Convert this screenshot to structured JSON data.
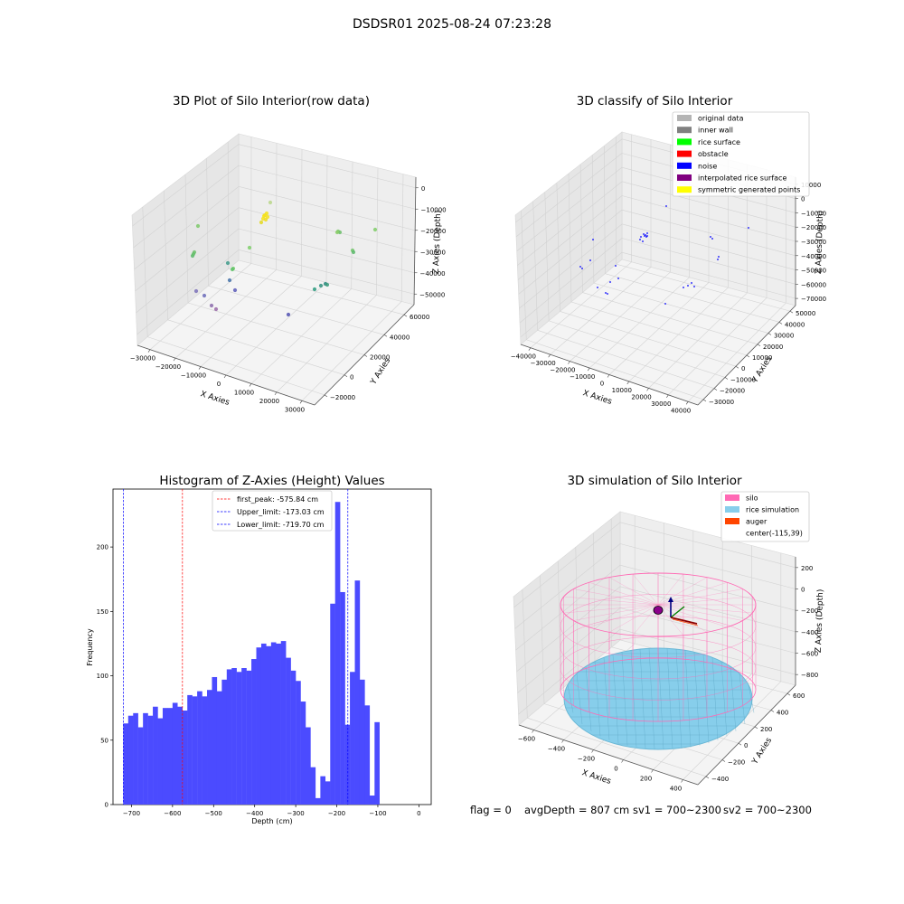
{
  "figure_title": "DSDSR01 2025-08-24 07:23:28",
  "status_line": {
    "flag": "flag = 0",
    "avg_depth": "avgDepth = 807 cm",
    "sv1": "sv1 = 700~2300",
    "sv2": "sv2 = 700~2300"
  },
  "colors": {
    "hist_bar": "#4b4bff",
    "first_peak_line": "#ff0000",
    "limit_line": "#0000ff",
    "silo": "#ff69b4",
    "rice": "#87ceeb",
    "auger": "#ff4500"
  },
  "chart_data": [
    {
      "type": "scatter",
      "title": "3D Plot of Silo Interior(row data)",
      "xlabel": "X Axies",
      "ylabel": "Y Axies",
      "zlabel": "Z Axies (Depth)",
      "x_ticks": [
        "−30000",
        "−20000",
        "−10000",
        "0",
        "10000",
        "20000",
        "30000"
      ],
      "y_ticks": [
        "−20000",
        "0",
        "20000",
        "40000",
        "60000"
      ],
      "z_ticks": [
        "−50000",
        "−40000",
        "−30000",
        "−20000",
        "−10000",
        "0"
      ]
    },
    {
      "type": "scatter",
      "title": "3D classify of Silo Interior",
      "xlabel": "X Axies",
      "ylabel": "Y Axies",
      "zlabel": "Z Axies (Depth)",
      "x_ticks": [
        "−40000",
        "−30000",
        "−20000",
        "−10000",
        "0",
        "10000",
        "20000",
        "30000",
        "40000"
      ],
      "y_ticks": [
        "−30000",
        "−20000",
        "−10000",
        "0",
        "10000",
        "20000",
        "30000",
        "40000",
        "50000"
      ],
      "z_ticks": [
        "−70000",
        "−60000",
        "−50000",
        "−40000",
        "−30000",
        "−20000",
        "−10000",
        "0",
        "10000"
      ],
      "legend": [
        {
          "label": "original data",
          "color": "#b4b4b4"
        },
        {
          "label": "inner wall",
          "color": "#808080"
        },
        {
          "label": "rice surface",
          "color": "#00ff00"
        },
        {
          "label": "obstacle",
          "color": "#ff0000"
        },
        {
          "label": "noise",
          "color": "#0000ff"
        },
        {
          "label": "interpolated rice surface",
          "color": "#800080"
        },
        {
          "label": "symmetric generated points",
          "color": "#ffff00"
        }
      ]
    },
    {
      "type": "bar",
      "title": "Histogram of Z-Axies (Height) Values",
      "xlabel": "Depth (cm)",
      "ylabel": "Frequency",
      "bin_start": -720,
      "bin_width": 12,
      "values": [
        63,
        69,
        71,
        60,
        71,
        69,
        76,
        67,
        75,
        75,
        79,
        76,
        73,
        85,
        84,
        88,
        84,
        89,
        99,
        88,
        97,
        105,
        106,
        103,
        106,
        104,
        113,
        122,
        125,
        123,
        126,
        125,
        127,
        114,
        104,
        96,
        80,
        60,
        29,
        5,
        22,
        18,
        156,
        235,
        165,
        62,
        103,
        174,
        97,
        77,
        7,
        64
      ],
      "xlim": [
        -745,
        30
      ],
      "ylim": [
        0,
        245
      ],
      "x_ticks": [
        -700,
        -600,
        -500,
        -400,
        -300,
        -200,
        -100,
        0
      ],
      "y_ticks": [
        0,
        50,
        100,
        150,
        200
      ],
      "x_tick_labels": [
        "−700",
        "−600",
        "−500",
        "−400",
        "−300",
        "−200",
        "−100",
        "0"
      ],
      "y_tick_labels": [
        "0",
        "50",
        "100",
        "150",
        "200"
      ],
      "vlines": [
        {
          "x": -575.84,
          "label": "first_peak: -575.84 cm",
          "color": "#ff0000"
        },
        {
          "x": -173.03,
          "label": "Upper_limit: -173.03 cm",
          "color": "#0000ff"
        },
        {
          "x": -719.7,
          "label": "Lower_limit: -719.70 cm",
          "color": "#0000ff"
        }
      ]
    },
    {
      "type": "scatter",
      "title": "3D simulation of Silo Interior",
      "xlabel": "X Axies",
      "ylabel": "Y Axies",
      "zlabel": "Z Axies (Depth)",
      "x_ticks": [
        "−600",
        "−400",
        "−200",
        "0",
        "200",
        "400"
      ],
      "y_ticks": [
        "−400",
        "−200",
        "0",
        "200",
        "400",
        "600"
      ],
      "z_ticks": [
        "−800",
        "−600",
        "−400",
        "−200",
        "0",
        "200"
      ],
      "legend": [
        {
          "label": "silo",
          "color": "#ff69b4"
        },
        {
          "label": "rice simulation",
          "color": "#87ceeb"
        },
        {
          "label": "auger",
          "color": "#ff4500"
        },
        {
          "label": "center(-115,39)",
          "color": ""
        }
      ]
    }
  ]
}
